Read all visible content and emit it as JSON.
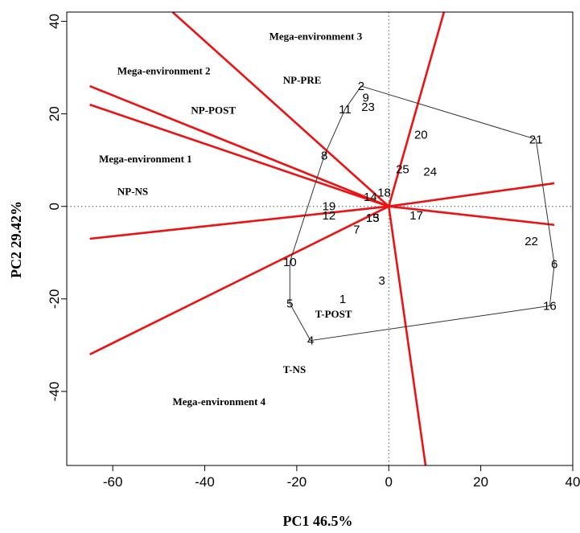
{
  "chart_data": {
    "type": "scatter",
    "subtype": "GGE biplot (which-won-where polygon)",
    "xlabel": "PC1 46.5%",
    "ylabel": "PC2 29.42%",
    "xlim": [
      -70,
      40
    ],
    "ylim": [
      -56,
      42
    ],
    "x_ticks": [
      -60,
      -40,
      -20,
      0,
      20,
      40
    ],
    "y_ticks": [
      -40,
      -20,
      0,
      20,
      40
    ],
    "grid": false,
    "reference_lines": {
      "x": 0,
      "y": 0,
      "style": "dotted"
    },
    "colors": {
      "rays": "#ee1111",
      "polygon": "#333333",
      "text": "#000000"
    },
    "points": [
      {
        "label": "1",
        "x": -10,
        "y": -20
      },
      {
        "label": "2",
        "x": -6,
        "y": 26
      },
      {
        "label": "3",
        "x": -1.5,
        "y": -16,
        "small": true
      },
      {
        "label": "4",
        "x": -17,
        "y": -29
      },
      {
        "label": "5",
        "x": -21.5,
        "y": -21
      },
      {
        "label": "6",
        "x": 36,
        "y": -12.5
      },
      {
        "label": "7",
        "x": -7,
        "y": -5
      },
      {
        "label": "8",
        "x": -14,
        "y": 11
      },
      {
        "label": "9",
        "x": -5,
        "y": 23.5
      },
      {
        "label": "10",
        "x": -21.5,
        "y": -12
      },
      {
        "label": "11",
        "x": -9.5,
        "y": 21
      },
      {
        "label": "12",
        "x": -13,
        "y": -2
      },
      {
        "label": "13",
        "x": -3.5,
        "y": -2.5
      },
      {
        "label": "14",
        "x": -4,
        "y": 2
      },
      {
        "label": "15",
        "x": -3.5,
        "y": -2.5
      },
      {
        "label": "16",
        "x": 35,
        "y": -21.5
      },
      {
        "label": "17",
        "x": 6,
        "y": -2
      },
      {
        "label": "18",
        "x": -1,
        "y": 3
      },
      {
        "label": "19",
        "x": -13,
        "y": 0
      },
      {
        "label": "20",
        "x": 7,
        "y": 15.5
      },
      {
        "label": "21",
        "x": 32,
        "y": 14.5
      },
      {
        "label": "22",
        "x": 31,
        "y": -7.5
      },
      {
        "label": "23",
        "x": -4.5,
        "y": 21.5
      },
      {
        "label": "24",
        "x": 9,
        "y": 7.5
      },
      {
        "label": "25",
        "x": 3,
        "y": 8
      }
    ],
    "polygon": [
      {
        "x": -6,
        "y": 26
      },
      {
        "x": 32,
        "y": 14.5
      },
      {
        "x": 36,
        "y": -12.5
      },
      {
        "x": 35,
        "y": -21.5
      },
      {
        "x": -17,
        "y": -29
      },
      {
        "x": -21.5,
        "y": -21
      },
      {
        "x": -21.5,
        "y": -12
      },
      {
        "x": -14,
        "y": 11
      },
      {
        "x": -9.5,
        "y": 21
      }
    ],
    "rays": [
      {
        "x": -47,
        "y": 42
      },
      {
        "x": 12,
        "y": 42
      },
      {
        "x": -65,
        "y": 26
      },
      {
        "x": -65,
        "y": 22
      },
      {
        "x": -65,
        "y": -7
      },
      {
        "x": -65,
        "y": -32
      },
      {
        "x": 8,
        "y": -56
      },
      {
        "x": 36,
        "y": 5
      },
      {
        "x": 36,
        "y": -4
      }
    ],
    "annotations": [
      {
        "text": "Mega-environment 3",
        "x": -26,
        "y": 36
      },
      {
        "text": "NP-PRE",
        "x": -23,
        "y": 26.5
      },
      {
        "text": "Mega-environment 2",
        "x": -59,
        "y": 28.5
      },
      {
        "text": "NP-POST",
        "x": -43,
        "y": 20
      },
      {
        "text": "Mega-environment 1",
        "x": -63,
        "y": 9.5
      },
      {
        "text": "NP-NS",
        "x": -59,
        "y": 2.5
      },
      {
        "text": "T-POST",
        "x": -16,
        "y": -24
      },
      {
        "text": "T-NS",
        "x": -23,
        "y": -36
      },
      {
        "text": "Mega-environment 4",
        "x": -47,
        "y": -43
      }
    ]
  }
}
